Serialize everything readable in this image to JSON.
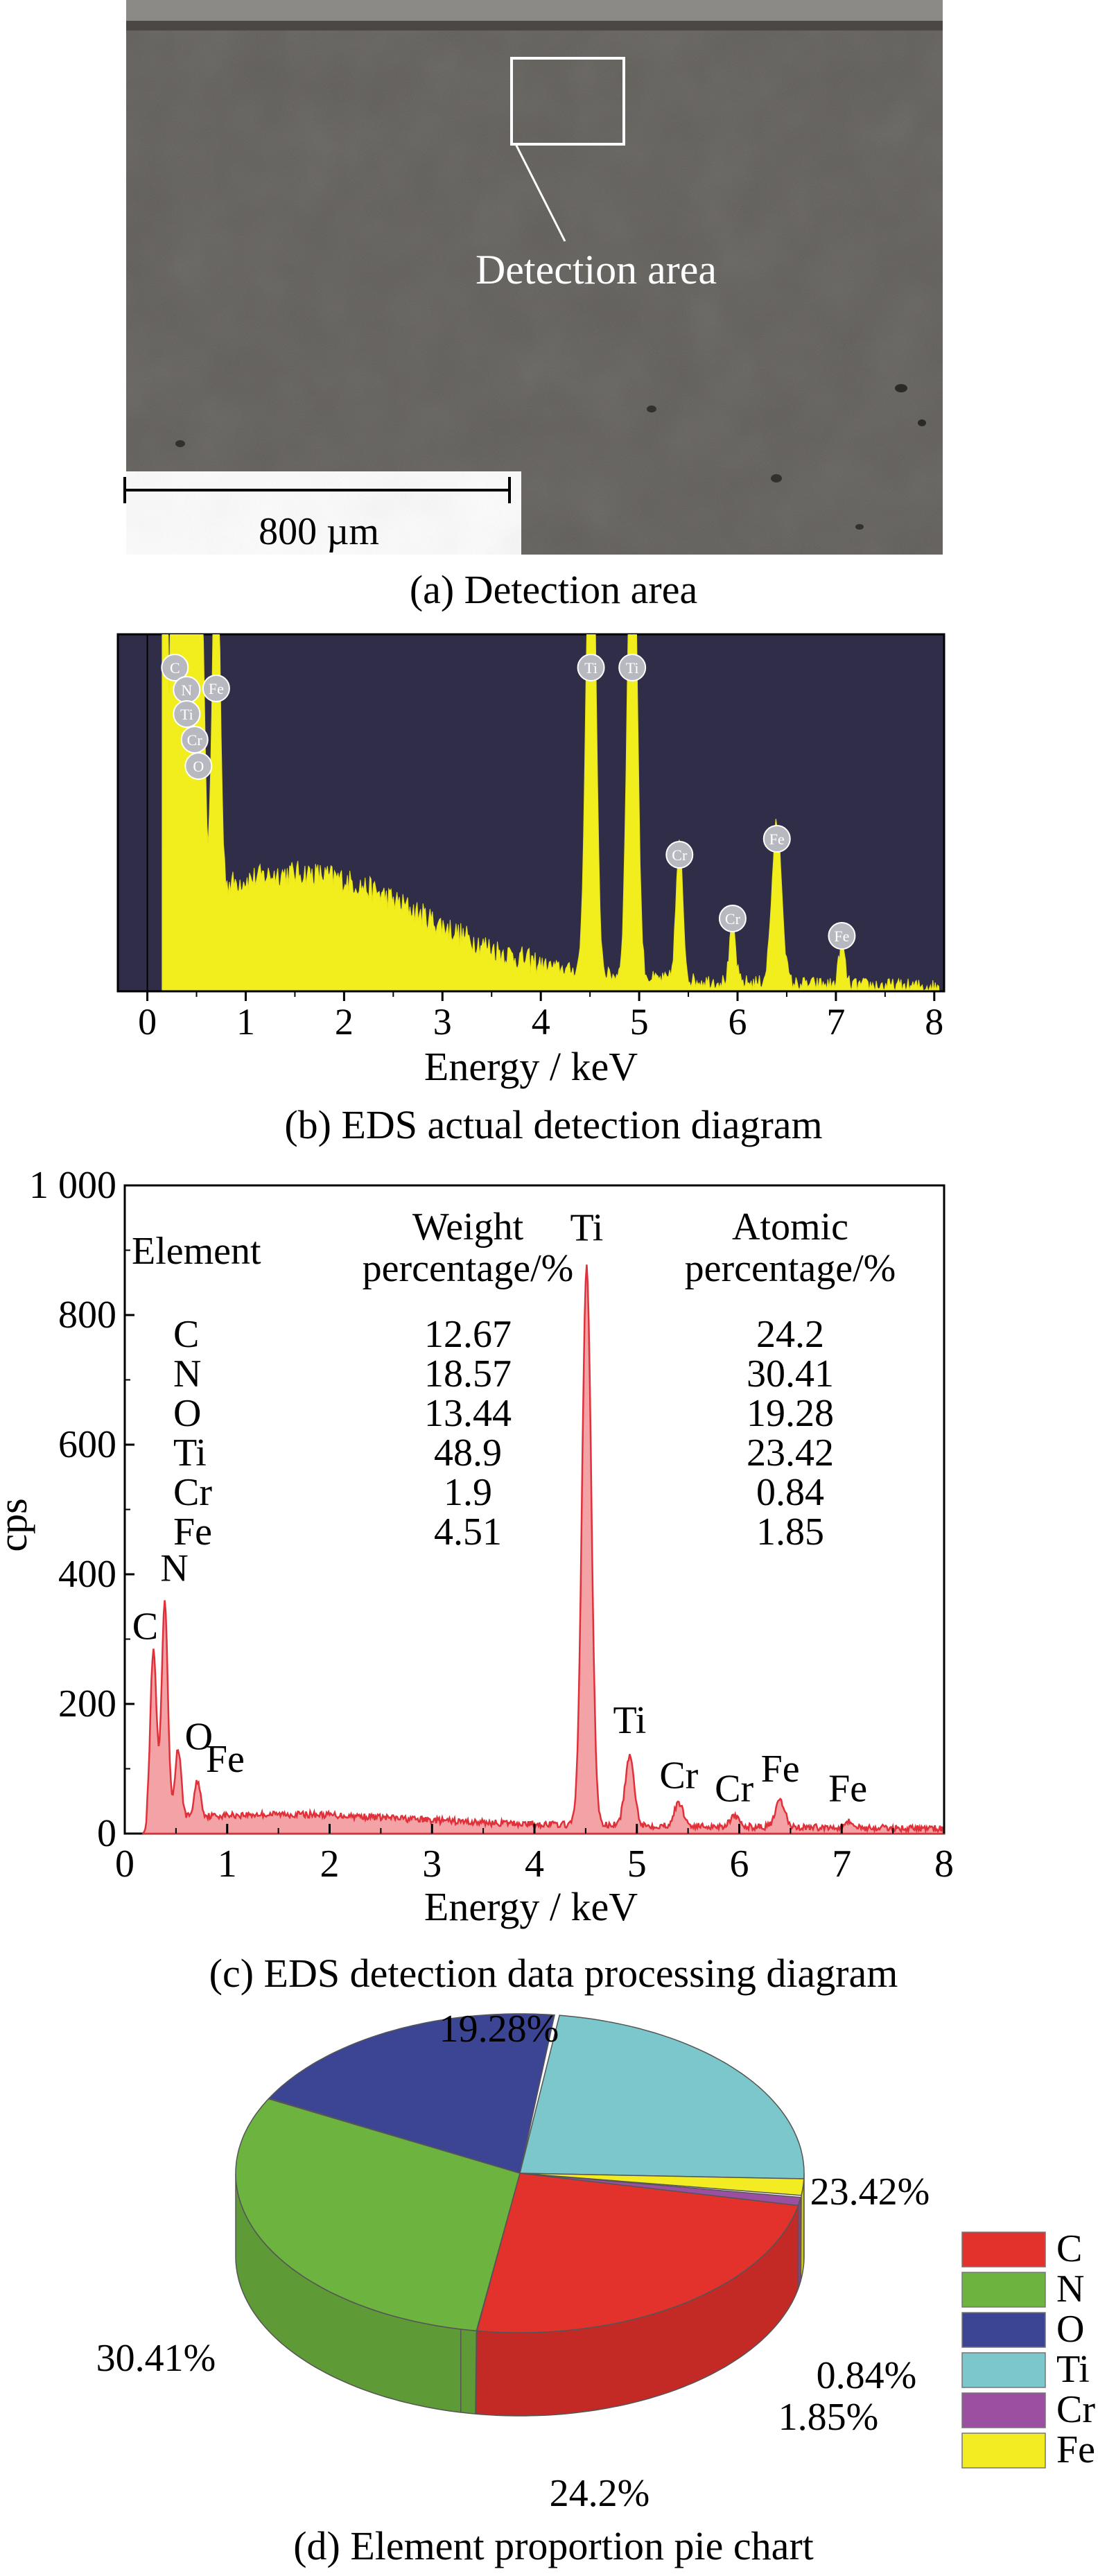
{
  "panel_a": {
    "caption": "(a) Detection area",
    "detection_label": "Detection area",
    "scale_bar_label": "800 µm"
  },
  "panel_b": {
    "caption": "(b) EDS actual detection diagram",
    "colors": {
      "background": "#2f2d47",
      "spectrum": "#f2ee1e"
    }
  },
  "panel_c": {
    "caption": "(c) EDS detection data processing diagram",
    "table": {
      "headers": [
        "Element",
        "Weight\npercentage/%",
        "Atomic\npercentage/%"
      ],
      "rows": [
        [
          "C",
          "12.67",
          "24.2"
        ],
        [
          "N",
          "18.57",
          "30.41"
        ],
        [
          "O",
          "13.44",
          "19.28"
        ],
        [
          "Ti",
          "48.9",
          "23.42"
        ],
        [
          "Cr",
          "1.9",
          "0.84"
        ],
        [
          "Fe",
          "4.51",
          "1.85"
        ]
      ]
    }
  },
  "panel_d": {
    "caption": "(d) Element proportion pie chart"
  },
  "chart_data": [
    {
      "type": "line",
      "xlabel": "Energy / keV",
      "ylabel": "",
      "xlim": [
        -0.3,
        8.1
      ],
      "x_ticks": [
        "0",
        "1",
        "2",
        "3",
        "4",
        "5",
        "6",
        "7",
        "8"
      ],
      "grid": false,
      "peaks": [
        {
          "element": "C",
          "energy": 0.28
        },
        {
          "element": "N",
          "energy": 0.39
        },
        {
          "element": "O",
          "energy": 0.52
        },
        {
          "element": "Fe",
          "energy": 0.71
        },
        {
          "element": "Ti",
          "energy": 4.51
        },
        {
          "element": "Ti",
          "energy": 4.93
        },
        {
          "element": "Cr",
          "energy": 5.41
        },
        {
          "element": "Cr",
          "energy": 5.95
        },
        {
          "element": "Fe",
          "energy": 6.4
        },
        {
          "element": "Fe",
          "energy": 7.06
        }
      ],
      "peak_marker_labels": [
        "C",
        "N",
        "Fe",
        "Ti",
        "Cr",
        "O",
        "Ti",
        "Ti",
        "Cr",
        "Cr",
        "Fe",
        "Fe"
      ]
    },
    {
      "type": "line",
      "xlabel": "Energy / keV",
      "ylabel": "cps",
      "xlim": [
        0,
        8
      ],
      "ylim": [
        0,
        1000
      ],
      "x_ticks": [
        "0",
        "1",
        "2",
        "3",
        "4",
        "5",
        "6",
        "7",
        "8"
      ],
      "y_ticks": [
        "0",
        "200",
        "400",
        "600",
        "800",
        "1 000"
      ],
      "grid": false,
      "series": [
        {
          "peaks": [
            {
              "label": "C",
              "energy": 0.28,
              "cps": 260
            },
            {
              "label": "N",
              "energy": 0.39,
              "cps": 330
            },
            {
              "label": "O",
              "energy": 0.52,
              "cps": 105
            },
            {
              "label": "Fe",
              "energy": 0.71,
              "cps": 55
            },
            {
              "label": "Ti",
              "energy": 4.51,
              "cps": 860
            },
            {
              "label": "Ti",
              "energy": 4.93,
              "cps": 105
            },
            {
              "label": "Cr",
              "energy": 5.41,
              "cps": 35
            },
            {
              "label": "Cr",
              "energy": 5.95,
              "cps": 15
            },
            {
              "label": "Fe",
              "energy": 6.4,
              "cps": 40
            },
            {
              "label": "Fe",
              "energy": 7.06,
              "cps": 10
            }
          ],
          "background_cps": 22
        }
      ]
    },
    {
      "type": "pie",
      "labels": [
        "C",
        "N",
        "O",
        "Ti",
        "Cr",
        "Fe"
      ],
      "values": [
        24.2,
        30.41,
        19.28,
        23.42,
        0.84,
        1.85
      ],
      "value_labels": [
        "24.2%",
        "30.41%",
        "19.28%",
        "23.42%",
        "0.84%",
        "1.85%"
      ],
      "colors": [
        "#e3312b",
        "#6db33f",
        "#3c4594",
        "#7bc7cb",
        "#9b4fa0",
        "#f4ec23"
      ],
      "legend_position": "right"
    }
  ]
}
